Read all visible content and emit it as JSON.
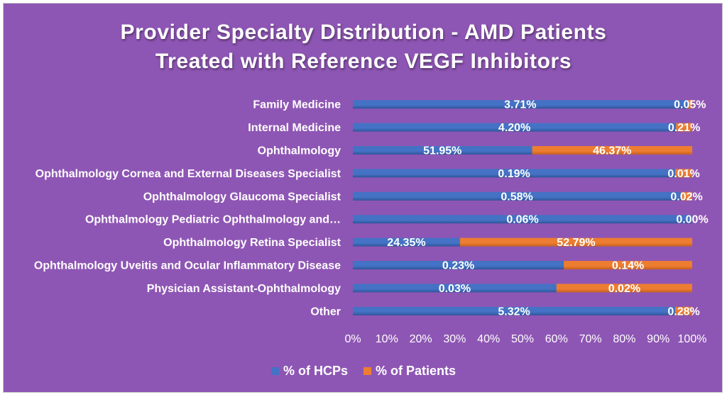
{
  "chart_data": {
    "type": "bar",
    "orientation": "horizontal",
    "stacked": "percent",
    "title": "Provider Specialty Distribution - AMD Patients Treated with Reference VEGF Inhibitors",
    "title_lines": [
      "Provider Specialty Distribution - AMD Patients",
      "Treated with Reference VEGF Inhibitors"
    ],
    "categories": [
      "Family Medicine",
      "Internal Medicine",
      "Ophthalmology",
      "Ophthalmology Cornea and External Diseases Specialist",
      "Ophthalmology Glaucoma Specialist",
      "Ophthalmology Pediatric Ophthalmology and…",
      "Ophthalmology Retina Specialist",
      "Ophthalmology Uveitis and Ocular Inflammatory Disease",
      "Physician Assistant-Ophthalmology",
      "Other"
    ],
    "series": [
      {
        "name": "% of HCPs",
        "color": "#4472c4",
        "values": [
          3.71,
          4.2,
          51.95,
          0.19,
          0.58,
          0.06,
          24.35,
          0.23,
          0.03,
          5.32
        ],
        "labels": [
          "3.71%",
          "4.20%",
          "51.95%",
          "0.19%",
          "0.58%",
          "0.06%",
          "24.35%",
          "0.23%",
          "0.03%",
          "5.32%"
        ]
      },
      {
        "name": "% of Patients",
        "color": "#ed7d31",
        "values": [
          0.05,
          0.21,
          46.37,
          0.01,
          0.02,
          0.0,
          52.79,
          0.14,
          0.02,
          0.28
        ],
        "labels": [
          "0.05%",
          "0.21%",
          "46.37%",
          "0.01%",
          "0.02%",
          "0.00%",
          "52.79%",
          "0.14%",
          "0.02%",
          "0.28%"
        ]
      }
    ],
    "x_ticks": [
      "0%",
      "10%",
      "20%",
      "30%",
      "40%",
      "50%",
      "60%",
      "70%",
      "80%",
      "90%",
      "100%"
    ],
    "xlim": [
      0,
      100
    ],
    "grid": false,
    "legend_position": "bottom",
    "background_color": "#8e56b4",
    "text_color": "#ffffff"
  }
}
